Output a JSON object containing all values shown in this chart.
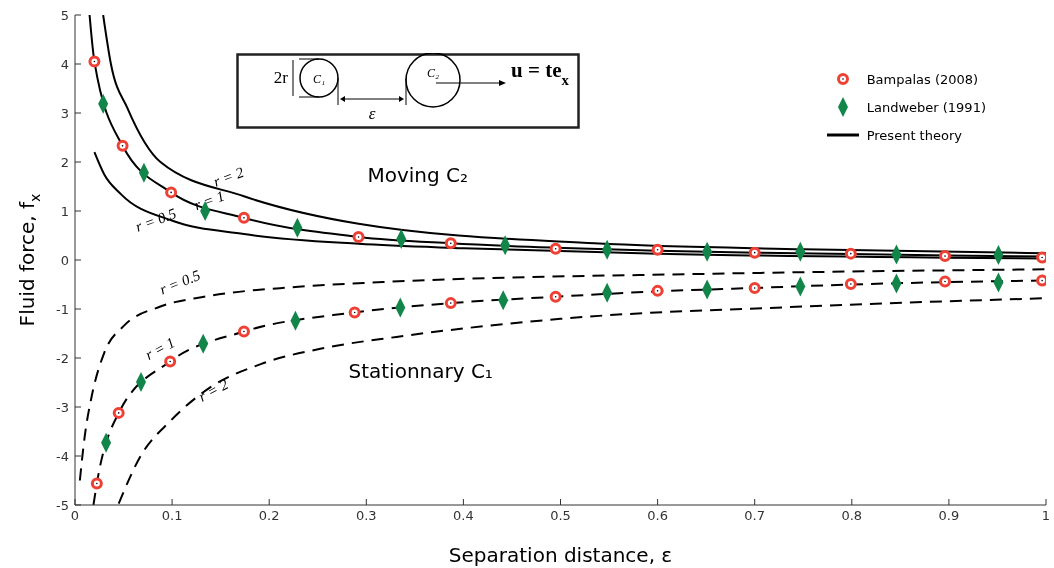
{
  "chart_data": {
    "type": "line",
    "xlabel": "Separation distance, ε",
    "ylabel": "Fluid force, f$_{x}$",
    "xlim": [
      0,
      1
    ],
    "ylim": [
      -5,
      5
    ],
    "xticks": [
      0,
      0.1,
      0.2,
      0.3,
      0.4,
      0.5,
      0.6,
      0.7,
      0.8,
      0.9,
      1
    ],
    "yticks": [
      -5,
      -4,
      -3,
      -2,
      -1,
      0,
      1,
      2,
      3,
      4,
      5
    ],
    "grid": false,
    "legend": "top right",
    "series": [
      {
        "name": "Bampalas (2008)",
        "type": "scatter",
        "marker": "circle",
        "color": "#ee4136",
        "x": [
          0.02,
          0.049,
          0.099,
          0.174,
          0.292,
          0.387,
          0.495,
          0.6,
          0.7,
          0.799,
          0.896,
          0.996,
          0.0225,
          0.045,
          0.098,
          0.174,
          0.288,
          0.387,
          0.495,
          0.6,
          0.7,
          0.799,
          0.896,
          0.996
        ],
        "values": [
          4.05,
          2.33,
          1.38,
          0.86,
          0.47,
          0.34,
          0.23,
          0.21,
          0.15,
          0.13,
          0.08,
          0.05,
          -4.56,
          -3.12,
          -2.07,
          -1.46,
          -1.07,
          -0.88,
          -0.75,
          -0.63,
          -0.57,
          -0.49,
          -0.44,
          -0.42
        ]
      },
      {
        "name": "Landweber (1991)",
        "type": "scatter",
        "marker": "diamond",
        "color": "#12854a",
        "x": [
          0.029,
          0.071,
          0.134,
          0.229,
          0.336,
          0.443,
          0.548,
          0.651,
          0.747,
          0.846,
          0.951,
          0.032,
          0.068,
          0.132,
          0.227,
          0.335,
          0.441,
          0.548,
          0.651,
          0.747,
          0.846,
          0.951
        ],
        "values": [
          3.19,
          1.78,
          1.0,
          0.66,
          0.43,
          0.3,
          0.21,
          0.17,
          0.17,
          0.11,
          0.1,
          -3.73,
          -2.49,
          -1.71,
          -1.24,
          -0.97,
          -0.82,
          -0.67,
          -0.6,
          -0.54,
          -0.48,
          -0.46
        ]
      },
      {
        "name": "Present theory",
        "marker": "none",
        "line_style": "solid",
        "color": "#000000",
        "x": [
          0.015,
          0.02,
          0.049,
          0.099,
          0.174,
          0.292,
          0.387,
          0.495,
          0.6,
          0.7,
          0.8,
          0.9,
          1
        ],
        "values": [
          5,
          4.05,
          2.33,
          1.38,
          0.86,
          0.47,
          0.34,
          0.25,
          0.19,
          0.15,
          0.12,
          0.09,
          0.07
        ]
      },
      {
        "marker": "none",
        "line_style": "solid",
        "color": "#000000",
        "x": [
          0.029,
          0.037,
          0.054,
          0.088,
          0.174,
          0.292,
          0.535,
          0.75,
          1
        ],
        "values": [
          5,
          4,
          3.1,
          2,
          1.3,
          0.74,
          0.34,
          0.22,
          0.14
        ]
      },
      {
        "marker": "none",
        "line_style": "solid",
        "color": "#000000",
        "x": [
          0.02,
          0.03,
          0.047,
          0.099,
          0.174,
          0.292,
          0.4,
          0.6,
          1
        ],
        "values": [
          2.2,
          1.75,
          1.35,
          0.81,
          0.53,
          0.33,
          0.24,
          0.13,
          0.03
        ]
      },
      {
        "marker": "none",
        "line_style": "dashed",
        "color": "#000000",
        "x": [
          0.005,
          0.01,
          0.017,
          0.03,
          0.05,
          0.088,
          0.133,
          0.227,
          0.317,
          0.658,
          1
        ],
        "values": [
          -4.5,
          -3.6,
          -2.8,
          -1.9,
          -1.35,
          -0.95,
          -0.75,
          -0.55,
          -0.45,
          -0.28,
          -0.19
        ]
      },
      {
        "marker": "none",
        "line_style": "dashed",
        "color": "#000000",
        "x": [
          0.019,
          0.0225,
          0.045,
          0.098,
          0.174,
          0.288,
          0.387,
          0.495,
          0.6,
          0.7,
          0.8,
          0.9,
          1
        ],
        "values": [
          -5,
          -4.56,
          -3.12,
          -2.07,
          -1.46,
          -1.07,
          -0.88,
          -0.75,
          -0.64,
          -0.57,
          -0.5,
          -0.45,
          -0.42
        ]
      },
      {
        "marker": "none",
        "line_style": "dashed",
        "color": "#000000",
        "x": [
          0.045,
          0.067,
          0.099,
          0.14,
          0.192,
          0.261,
          0.331,
          0.5,
          0.75,
          1
        ],
        "values": [
          -4.97,
          -4.02,
          -3.27,
          -2.59,
          -2.12,
          -1.78,
          -1.57,
          -1.2,
          -0.95,
          -0.78
        ]
      }
    ],
    "annotations": [
      "r = 2",
      "r = 1",
      "r = 0.5",
      "r = 0.5",
      "r = 1",
      "r = 2",
      "Moving  C₂",
      "Stationnary  C₁",
      "2r",
      "C₁",
      "ε",
      "C₂",
      "u = te$_{x}$"
    ]
  }
}
